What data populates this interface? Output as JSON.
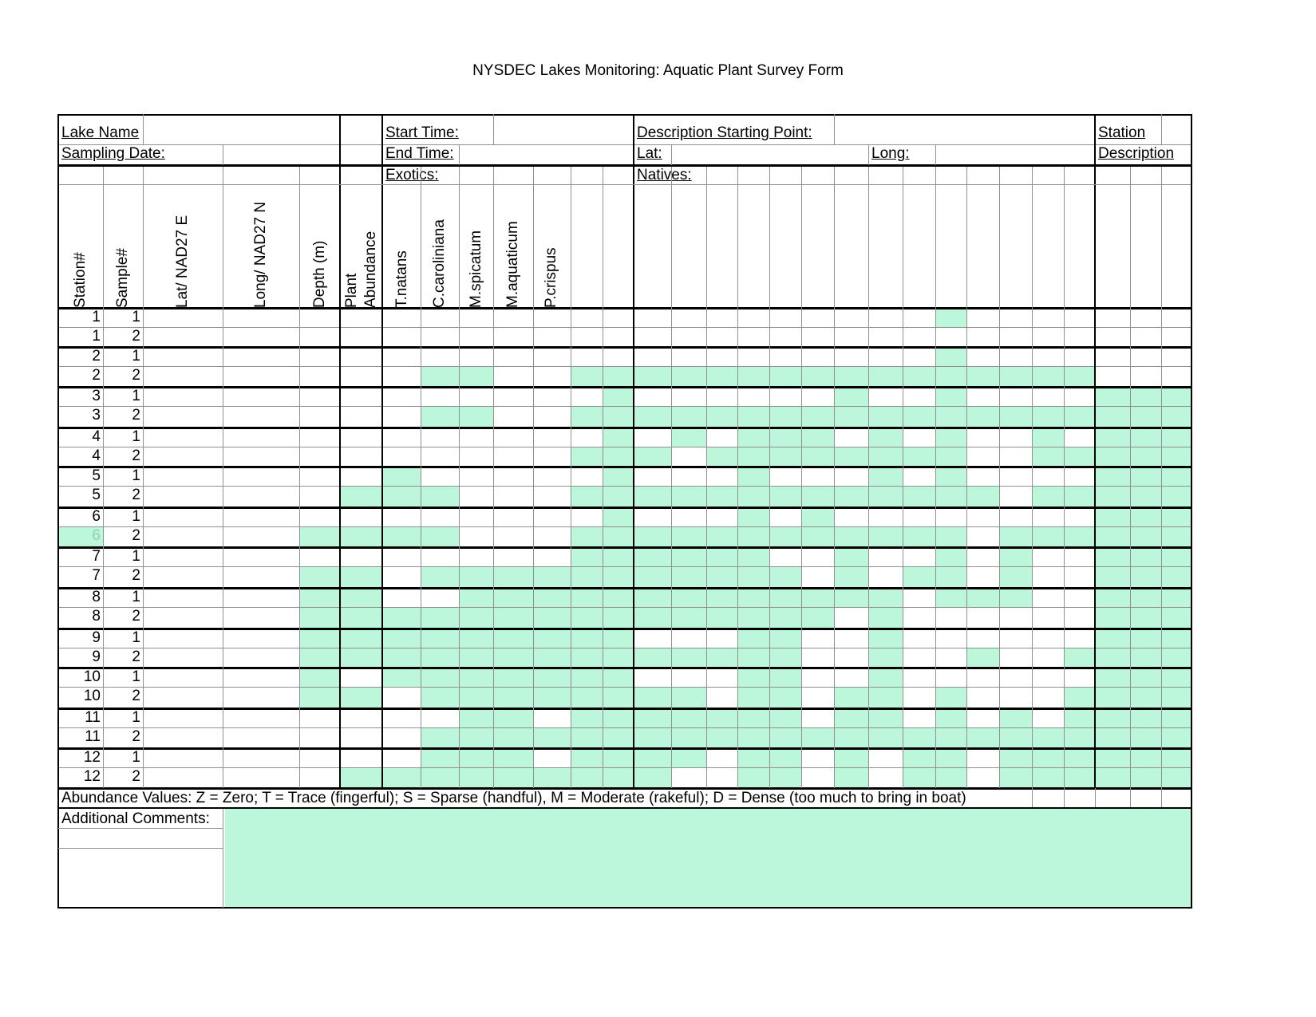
{
  "form_title": "NYSDEC Lakes Monitoring: Aquatic Plant Survey Form",
  "header": {
    "lake_name": "Lake Name",
    "sampling_date": "Sampling Date:",
    "start_time": "Start Time:",
    "end_time": "End Time:",
    "exotics": "Exotics:",
    "description_starting_point": "Description Starting Point:",
    "lat": "Lat:",
    "long": "Long:",
    "natives": "Natives:",
    "station": "Station",
    "description": "Description"
  },
  "columns": {
    "station": "Station#",
    "sample": "Sample#",
    "lat": "Lat/ NAD27 E",
    "long": "Long/ NAD27 N",
    "depth": "Depth (m)",
    "plant_abundance_line1": "Plant",
    "plant_abundance_line2": "Abundance",
    "exotic_species": [
      "T.natans",
      "C.caroliniana",
      "M.spicatum",
      "M.aquaticum",
      "P.crispus"
    ]
  },
  "rows": [
    {
      "station": "1",
      "sample": "1"
    },
    {
      "station": "1",
      "sample": "2"
    },
    {
      "station": "2",
      "sample": "1"
    },
    {
      "station": "2",
      "sample": "2"
    },
    {
      "station": "3",
      "sample": "1"
    },
    {
      "station": "3",
      "sample": "2"
    },
    {
      "station": "4",
      "sample": "1"
    },
    {
      "station": "4",
      "sample": "2"
    },
    {
      "station": "5",
      "sample": "1"
    },
    {
      "station": "5",
      "sample": "2"
    },
    {
      "station": "6",
      "sample": "1"
    },
    {
      "station": "6",
      "sample": "2"
    },
    {
      "station": "7",
      "sample": "1"
    },
    {
      "station": "7",
      "sample": "2"
    },
    {
      "station": "8",
      "sample": "1"
    },
    {
      "station": "8",
      "sample": "2"
    },
    {
      "station": "9",
      "sample": "1"
    },
    {
      "station": "9",
      "sample": "2"
    },
    {
      "station": "10",
      "sample": "1"
    },
    {
      "station": "10",
      "sample": "2"
    },
    {
      "station": "11",
      "sample": "1"
    },
    {
      "station": "11",
      "sample": "2"
    },
    {
      "station": "12",
      "sample": "1"
    },
    {
      "station": "12",
      "sample": "2"
    }
  ],
  "abundance_values": "Abundance Values: Z = Zero; T = Trace (fingerful); S = Sparse (handful), M = Moderate (rakeful); D = Dense (too much to bring in boat)",
  "additional_comments": "Additional Comments:",
  "colors": {
    "shade": "#bdf7db",
    "grid": "#909090",
    "border": "#000000"
  }
}
